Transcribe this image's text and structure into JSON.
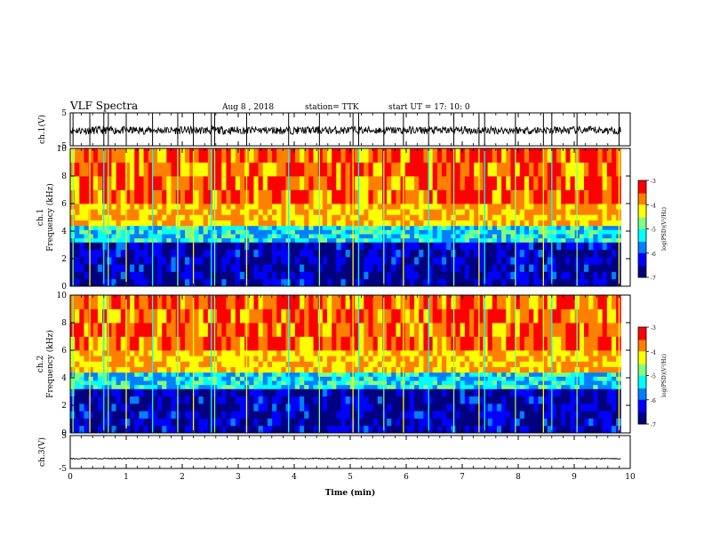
{
  "header": {
    "title": "VLF Spectra",
    "date": "Aug 8  , 2018",
    "station": "station= TTK",
    "start_ut": "start  UT =   17: 10: 0"
  },
  "chart_data": [
    {
      "type": "line",
      "name": "ch1-waveform",
      "ylabel": "ch.1(V)",
      "ylim": [
        -5,
        5
      ],
      "yticks": [
        5,
        -5
      ],
      "xlim": [
        0,
        10
      ],
      "x_end": 9.83,
      "baseline": -0.3,
      "noise_amplitude": 1.2,
      "spikes_min": [
        0.05,
        0.35,
        0.6,
        0.68,
        1.0,
        1.47,
        1.92,
        2.2,
        2.52,
        2.58,
        3.15,
        3.9,
        4.45,
        5.05,
        5.15,
        5.6,
        5.95,
        6.4,
        6.85,
        7.3,
        7.4,
        7.95,
        8.45,
        8.6,
        9.05,
        9.8
      ]
    },
    {
      "type": "heatmap",
      "name": "ch1-spectrogram",
      "ylabel_top": "ch.1",
      "ylabel": "Frequency  (kHz)",
      "ylim": [
        0,
        10
      ],
      "yticks": [
        0,
        2,
        4,
        6,
        8,
        10
      ],
      "xlim": [
        0,
        10
      ],
      "x_end": 9.83,
      "colorbar": {
        "label": "log(PSD)(V²/Hz)",
        "ticks": [
          -3,
          -4,
          -5,
          -6,
          -7
        ],
        "range": [
          -7,
          -3
        ]
      },
      "bands_kHz": [
        {
          "from": 0,
          "to": 3.2,
          "log_psd": -6.6
        },
        {
          "from": 3.2,
          "to": 4.4,
          "log_psd": -5.3
        },
        {
          "from": 4.4,
          "to": 6.0,
          "log_psd": -4.0
        },
        {
          "from": 6.0,
          "to": 10,
          "log_psd": -3.6
        }
      ],
      "broadband_lines_min": [
        0.05,
        0.35,
        0.6,
        0.68,
        1.0,
        1.47,
        1.92,
        2.2,
        2.52,
        2.58,
        3.15,
        3.9,
        4.45,
        5.05,
        5.15,
        5.6,
        5.95,
        6.4,
        6.85,
        7.3,
        7.4,
        7.95,
        8.45,
        8.6,
        9.05,
        9.8
      ]
    },
    {
      "type": "heatmap",
      "name": "ch2-spectrogram",
      "ylabel_top": "ch.2",
      "ylabel": "Frequency  (kHz)",
      "ylim": [
        0,
        10
      ],
      "yticks": [
        0,
        2,
        4,
        6,
        8,
        10
      ],
      "xlim": [
        0,
        10
      ],
      "x_end": 9.83,
      "colorbar": {
        "label": "log(PSD)(V²/Hz)",
        "ticks": [
          -3,
          -4,
          -5,
          -6,
          -7
        ],
        "range": [
          -7,
          -3
        ]
      },
      "bands_kHz": [
        {
          "from": 0,
          "to": 3.2,
          "log_psd": -6.6
        },
        {
          "from": 3.2,
          "to": 4.4,
          "log_psd": -5.3
        },
        {
          "from": 4.4,
          "to": 6.0,
          "log_psd": -4.0
        },
        {
          "from": 6.0,
          "to": 10,
          "log_psd": -3.6
        }
      ],
      "broadband_lines_min": [
        0.05,
        0.35,
        0.6,
        0.68,
        1.0,
        1.47,
        1.92,
        2.2,
        2.52,
        2.58,
        3.15,
        3.9,
        4.45,
        5.05,
        5.15,
        5.6,
        5.95,
        6.4,
        6.85,
        7.3,
        7.4,
        7.95,
        8.45,
        8.6,
        9.05,
        9.8
      ]
    },
    {
      "type": "line",
      "name": "ch3-waveform",
      "ylabel": "ch.3(V)",
      "ylim": [
        -5,
        5
      ],
      "yticks": [
        5,
        -5
      ],
      "xlim": [
        0,
        10
      ],
      "x_end": 9.83,
      "baseline": -2.0,
      "noise_amplitude": 0.15,
      "xlabel": "Time  (min)",
      "xticks": [
        0,
        1,
        2,
        3,
        4,
        5,
        6,
        7,
        8,
        9,
        10
      ]
    }
  ],
  "colors": {
    "jet": [
      "#000080",
      "#0000ff",
      "#0080ff",
      "#00ffff",
      "#80ff80",
      "#ffff00",
      "#ff8000",
      "#ff0000",
      "#ffffff"
    ]
  }
}
